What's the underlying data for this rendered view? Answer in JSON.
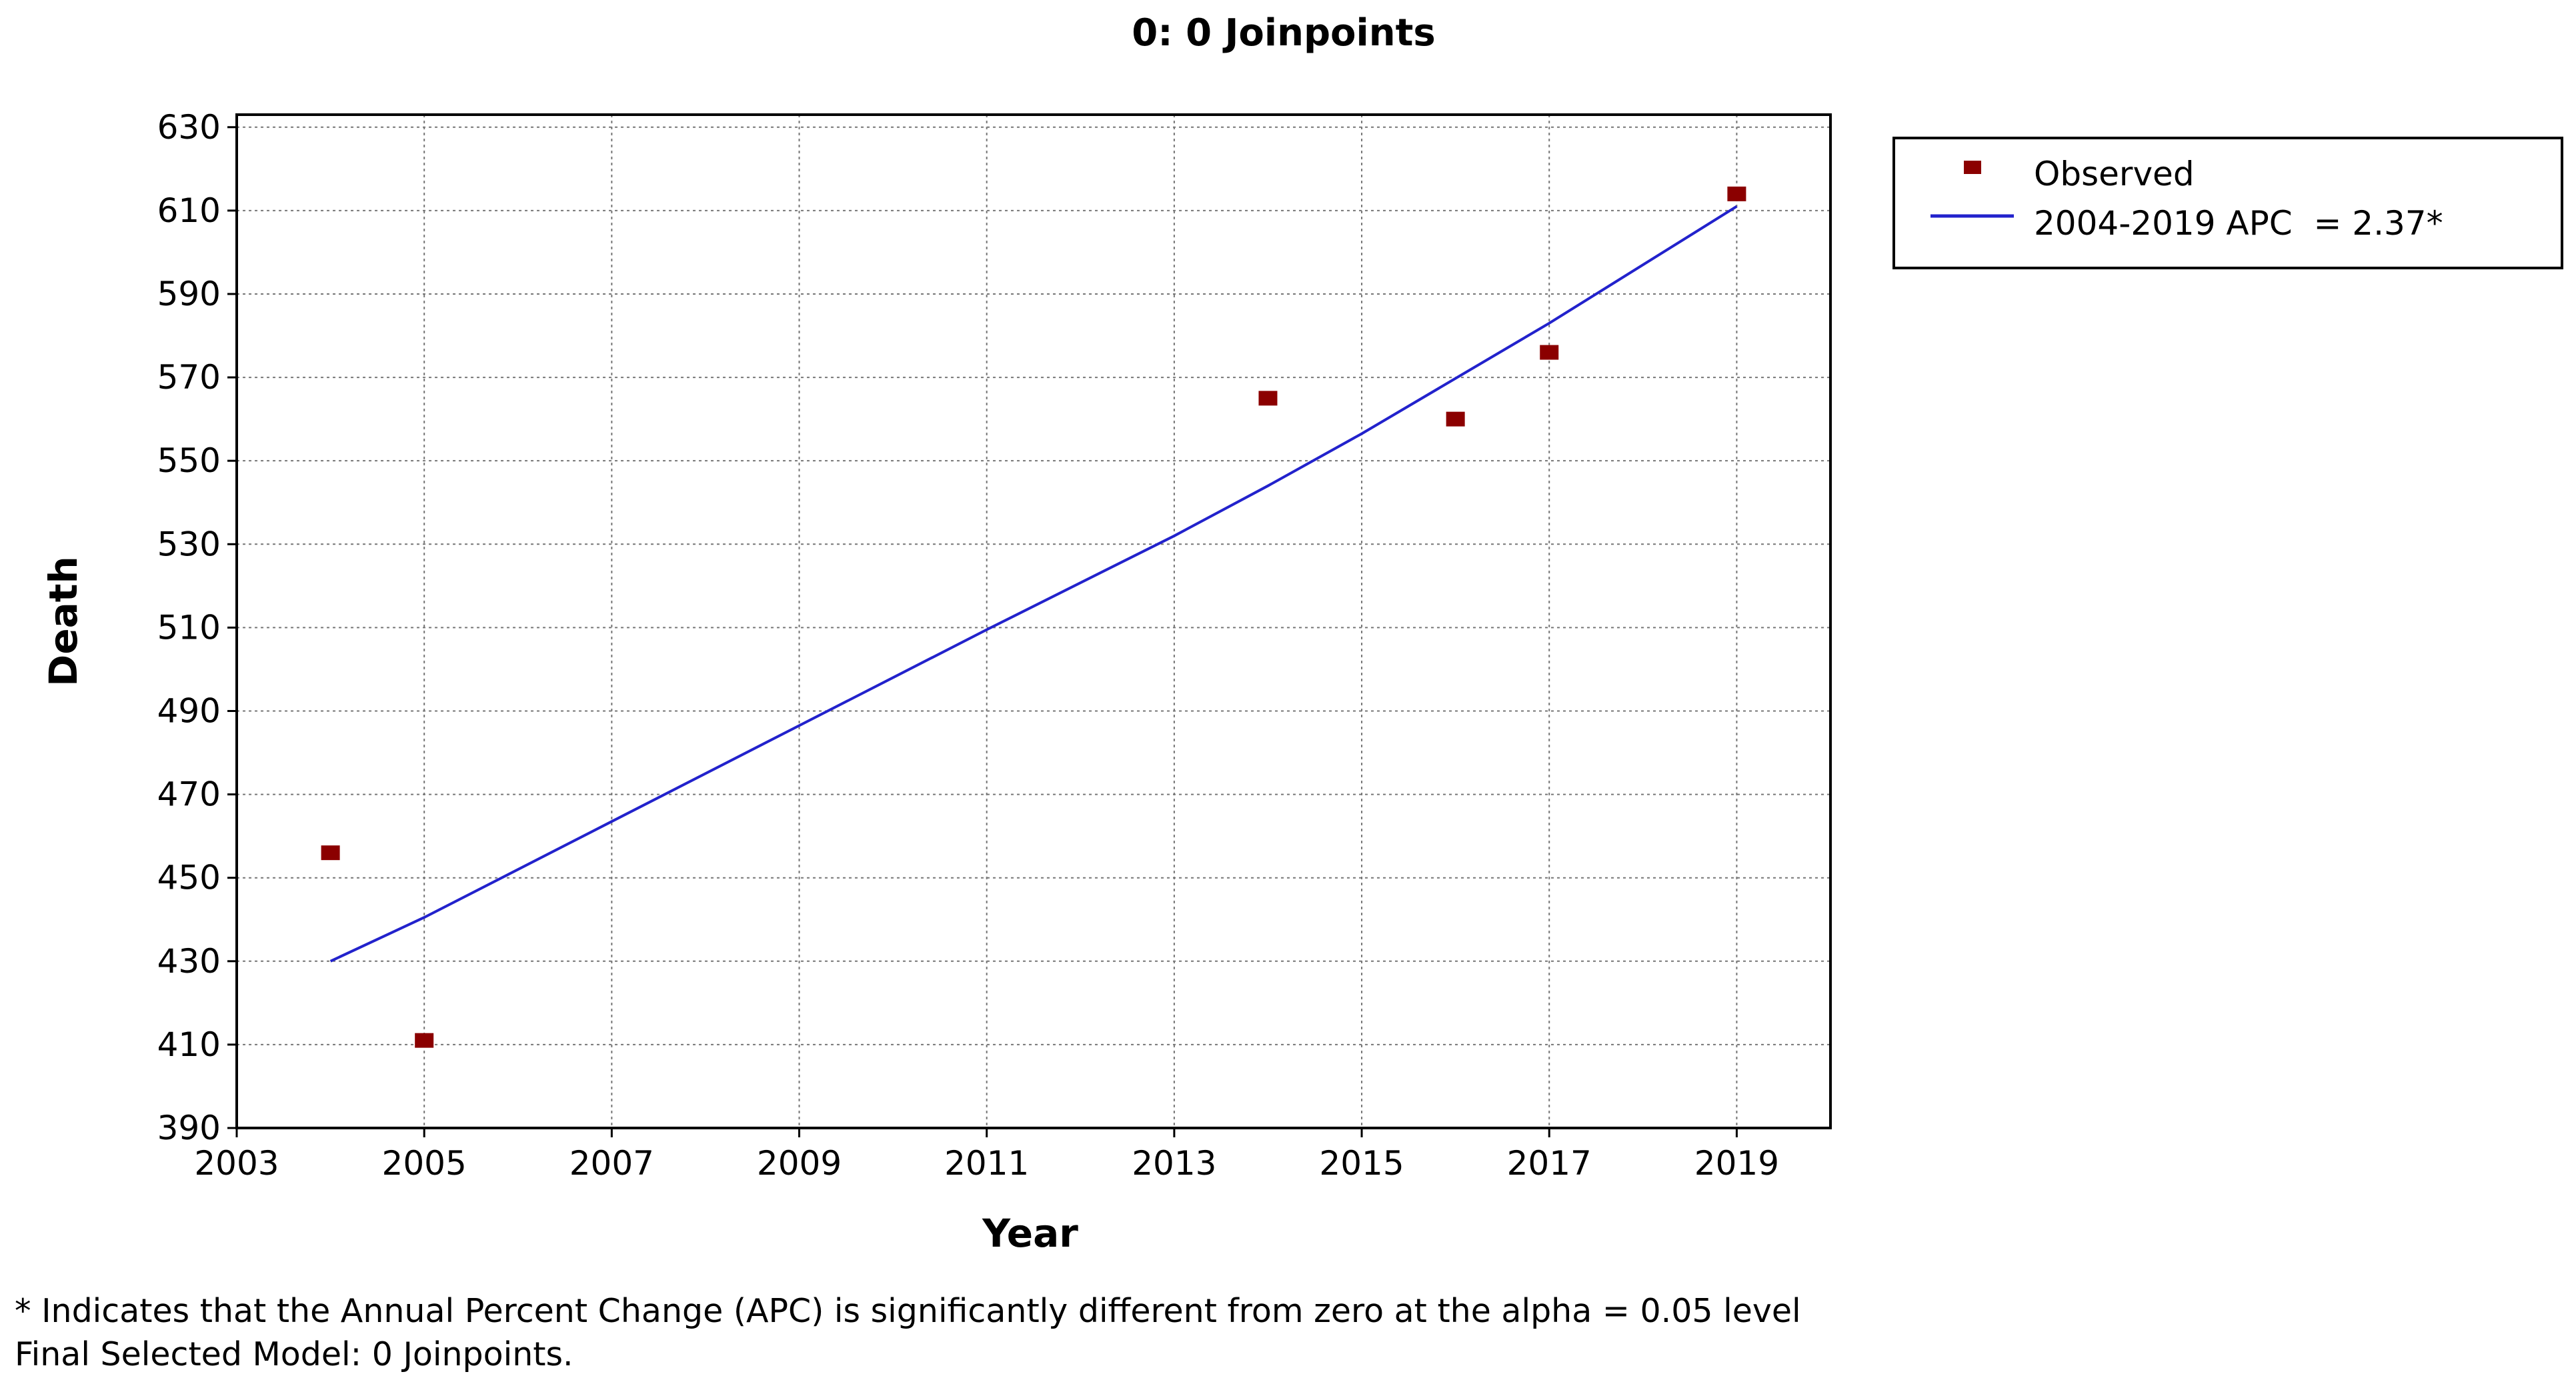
{
  "chart_data": {
    "type": "scatter",
    "title": "0: 0 Joinpoints",
    "xlabel": "Year",
    "ylabel": "Death",
    "xlim": [
      2003,
      2020
    ],
    "ylim": [
      390,
      633
    ],
    "x_ticks": [
      2003,
      2005,
      2007,
      2009,
      2011,
      2013,
      2015,
      2017,
      2019
    ],
    "y_ticks": [
      390,
      410,
      430,
      450,
      470,
      490,
      510,
      530,
      550,
      570,
      590,
      610,
      630
    ],
    "grid": true,
    "legend_position": "top-right, outside plot",
    "series": [
      {
        "name": "Observed",
        "kind": "scatter",
        "color": "#8b0000",
        "marker": "square",
        "points": [
          {
            "x": 2004,
            "y": 456
          },
          {
            "x": 2005,
            "y": 411
          },
          {
            "x": 2014,
            "y": 565
          },
          {
            "x": 2016,
            "y": 560
          },
          {
            "x": 2017,
            "y": 576
          },
          {
            "x": 2019,
            "y": 614
          }
        ]
      },
      {
        "name": "2004-2019 APC  = 2.37*",
        "kind": "line",
        "color": "#2222cc",
        "points": [
          {
            "x": 2004,
            "y": 430
          },
          {
            "x": 2005,
            "y": 440.5
          },
          {
            "x": 2007,
            "y": 463.5
          },
          {
            "x": 2009,
            "y": 486.5
          },
          {
            "x": 2011,
            "y": 509.5
          },
          {
            "x": 2013,
            "y": 532
          },
          {
            "x": 2014,
            "y": 544
          },
          {
            "x": 2015,
            "y": 556.5
          },
          {
            "x": 2017,
            "y": 583
          },
          {
            "x": 2019,
            "y": 611
          }
        ]
      }
    ]
  },
  "footnotes": [
    "* Indicates that the Annual Percent Change (APC) is significantly different from zero at the alpha = 0.05 level",
    "Final Selected Model: 0 Joinpoints."
  ]
}
